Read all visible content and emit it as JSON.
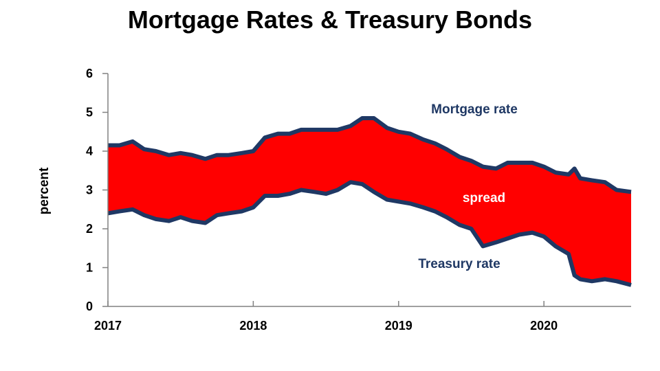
{
  "chart_data": {
    "type": "area",
    "title": "Mortgage Rates & Treasury Bonds",
    "xlabel": "",
    "ylabel": "percent",
    "ylim": [
      0,
      6
    ],
    "xlim": [
      2017,
      2020.6
    ],
    "y_ticks": [
      "0",
      "1",
      "2",
      "3",
      "4",
      "5",
      "6"
    ],
    "x_ticks": [
      "2017",
      "2018",
      "2019",
      "2020"
    ],
    "grid": false,
    "colors": {
      "fill": "#ff0000",
      "line": "#1f3864",
      "axis": "#808080"
    },
    "annotations": {
      "mortgage": "Mortgage rate",
      "spread": "spread",
      "treasury": "Treasury rate"
    },
    "x": [
      2017.0,
      2017.08,
      2017.17,
      2017.25,
      2017.33,
      2017.42,
      2017.5,
      2017.58,
      2017.67,
      2017.75,
      2017.83,
      2017.92,
      2018.0,
      2018.08,
      2018.17,
      2018.25,
      2018.33,
      2018.42,
      2018.5,
      2018.58,
      2018.67,
      2018.75,
      2018.83,
      2018.92,
      2019.0,
      2019.08,
      2019.17,
      2019.25,
      2019.33,
      2019.42,
      2019.5,
      2019.58,
      2019.67,
      2019.75,
      2019.83,
      2019.92,
      2020.0,
      2020.08,
      2020.17,
      2020.21,
      2020.25,
      2020.33,
      2020.42,
      2020.5,
      2020.6
    ],
    "series": [
      {
        "name": "Mortgage rate",
        "values": [
          4.15,
          4.15,
          4.25,
          4.05,
          4.0,
          3.9,
          3.95,
          3.9,
          3.8,
          3.9,
          3.9,
          3.95,
          4.0,
          4.35,
          4.45,
          4.45,
          4.55,
          4.55,
          4.55,
          4.55,
          4.65,
          4.85,
          4.85,
          4.6,
          4.5,
          4.45,
          4.3,
          4.2,
          4.05,
          3.85,
          3.75,
          3.6,
          3.55,
          3.7,
          3.7,
          3.7,
          3.6,
          3.45,
          3.4,
          3.55,
          3.3,
          3.25,
          3.2,
          3.0,
          2.95
        ]
      },
      {
        "name": "Treasury rate",
        "values": [
          2.4,
          2.45,
          2.5,
          2.35,
          2.25,
          2.2,
          2.3,
          2.2,
          2.15,
          2.35,
          2.4,
          2.45,
          2.55,
          2.85,
          2.85,
          2.9,
          3.0,
          2.95,
          2.9,
          3.0,
          3.2,
          3.15,
          2.95,
          2.75,
          2.7,
          2.65,
          2.55,
          2.45,
          2.3,
          2.1,
          2.0,
          1.55,
          1.65,
          1.75,
          1.85,
          1.9,
          1.8,
          1.55,
          1.35,
          0.8,
          0.7,
          0.65,
          0.7,
          0.65,
          0.55
        ]
      }
    ]
  }
}
